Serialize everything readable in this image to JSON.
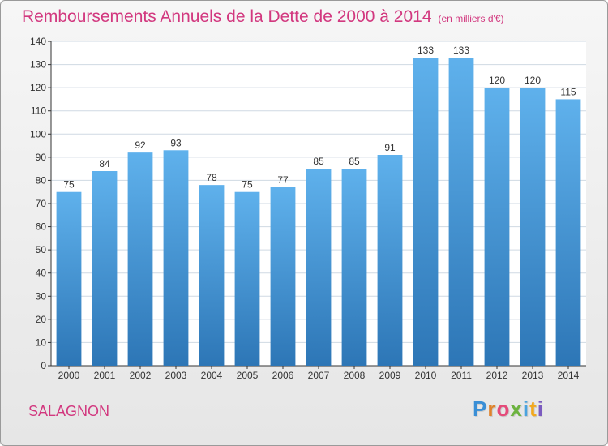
{
  "header": {
    "title": "Remboursements Annuels de la Dette de 2000 à 2014",
    "unit": "(en milliers d'€)"
  },
  "footer": {
    "commune": "SALAGNON",
    "logo_letters": [
      "P",
      "r",
      "o",
      "x",
      "i",
      "t",
      "i"
    ],
    "logo_colors": [
      "#3a8fd6",
      "#e0832b",
      "#e54b7a",
      "#6cb33f",
      "#4aa3df",
      "#f2a81d",
      "#7b5bbf"
    ]
  },
  "colors": {
    "title": "#d2387f",
    "bar_top": "#5fb1ec",
    "bar_bottom": "#2d76b6",
    "grid": "#cfd9e3",
    "axis": "#333333"
  },
  "chart_data": {
    "type": "bar",
    "title": "Remboursements Annuels de la Dette de 2000 à 2014",
    "subtitle": "(en milliers d'€)",
    "xlabel": "",
    "ylabel": "",
    "categories": [
      "2000",
      "2001",
      "2002",
      "2003",
      "2004",
      "2005",
      "2006",
      "2007",
      "2008",
      "2009",
      "2010",
      "2011",
      "2012",
      "2013",
      "2014"
    ],
    "values": [
      75,
      84,
      92,
      93,
      78,
      75,
      77,
      85,
      85,
      91,
      133,
      133,
      120,
      120,
      115
    ],
    "ylim": [
      0,
      140
    ],
    "yticks": [
      0,
      10,
      20,
      30,
      40,
      50,
      60,
      70,
      80,
      90,
      100,
      110,
      120,
      130,
      140
    ],
    "grid": true,
    "legend": "none"
  }
}
